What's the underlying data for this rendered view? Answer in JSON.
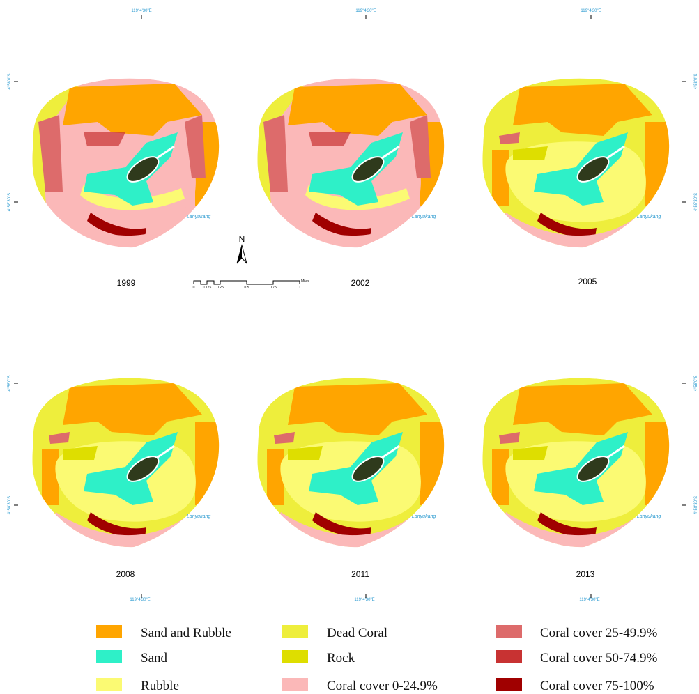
{
  "maps": [
    {
      "year": "1999",
      "place": "Lanyukang"
    },
    {
      "year": "2002",
      "place": "Lanyukang"
    },
    {
      "year": "2005",
      "place": "Lanyukang"
    },
    {
      "year": "2008",
      "place": "Lanyukang"
    },
    {
      "year": "2011",
      "place": "Lanyukang"
    },
    {
      "year": "2013",
      "place": "Lanyukang"
    }
  ],
  "coordinates": {
    "top": [
      "119°4'30\"E",
      "119°4'30\"E",
      "119°4'30\"E"
    ],
    "bottom": [
      "119°4'30\"E",
      "119°4'30\"E",
      "119°4'30\"E"
    ],
    "left": [
      "4°58'0\"S",
      "4°58'30\"S",
      "4°58'0\"S",
      "4°58'30\"S"
    ],
    "right": [
      "4°58'0\"S",
      "4°58'30\"S",
      "4°58'0\"S",
      "4°58'30\"S"
    ]
  },
  "scale_bar": {
    "ticks": [
      "0",
      "0.125",
      "0.25",
      "0.5",
      "0.75",
      "1"
    ],
    "unit": "Miles"
  },
  "north": "N",
  "legend": [
    {
      "label": "Sand and Rubble",
      "color": "#ffa500"
    },
    {
      "label": "Sand",
      "color": "#2ef0c8"
    },
    {
      "label": "Rubble",
      "color": "#fbfa73"
    },
    {
      "label": "Dead Coral",
      "color": "#eeee3c"
    },
    {
      "label": "Rock",
      "color": "#dede00"
    },
    {
      "label": "Coral cover 0-24.9%",
      "color": "#fbb8b8"
    },
    {
      "label": "Coral cover 25-49.9%",
      "color": "#dd6b6b"
    },
    {
      "label": "Coral cover 50-74.9%",
      "color": "#c83232"
    },
    {
      "label": "Coral cover 75-100%",
      "color": "#a00000"
    }
  ]
}
